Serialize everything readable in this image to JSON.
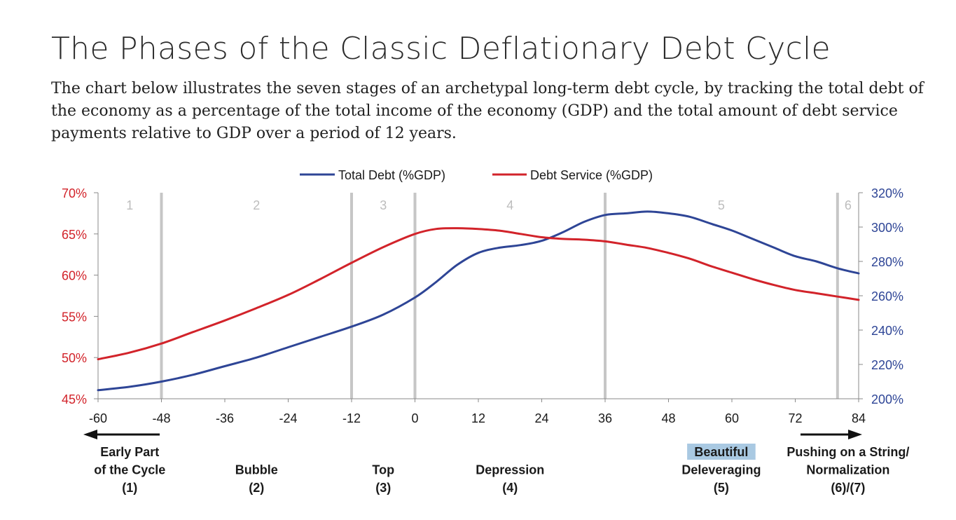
{
  "title": "The Phases of the Classic Deflationary Debt Cycle",
  "subtitle": "The chart below illustrates the seven stages of an archetypal long-term debt cycle, by tracking the total debt of the economy as a percentage of the total income of the economy (GDP) and the total amount of debt service payments relative to GDP over a period of 12 years.",
  "colors": {
    "debt": "#2e4596",
    "service": "#d2232a",
    "divider": "#c6c6c6",
    "phase_num": "#bdbdbd",
    "highlight": "#a9c9e2"
  },
  "chart_data": {
    "type": "line",
    "x_ticks": [
      "-60",
      "-48",
      "-36",
      "-24",
      "-12",
      "0",
      "12",
      "24",
      "36",
      "48",
      "60",
      "72",
      "84"
    ],
    "xlim": [
      -60,
      84
    ],
    "y_left_ticks": [
      "70%",
      "65%",
      "60%",
      "55%",
      "50%",
      "45%"
    ],
    "y_left_lim": [
      45,
      70
    ],
    "y_right_ticks": [
      "320%",
      "300%",
      "280%",
      "260%",
      "240%",
      "220%",
      "200%"
    ],
    "y_right_lim": [
      200,
      320
    ],
    "legend": [
      "Total Debt (%GDP)",
      "Debt Service (%GDP)"
    ],
    "legend_position": "top-center",
    "series": [
      {
        "name": "Total Debt (%GDP)",
        "axis": "right",
        "x": [
          -60,
          -54,
          -48,
          -42,
          -36,
          -30,
          -24,
          -18,
          -12,
          -6,
          0,
          4,
          8,
          12,
          16,
          20,
          24,
          28,
          32,
          36,
          40,
          44,
          48,
          52,
          56,
          60,
          64,
          68,
          72,
          76,
          80,
          84
        ],
        "values": [
          205,
          207,
          210,
          214,
          219,
          224,
          230,
          236,
          242,
          249,
          259,
          268,
          278,
          285,
          288,
          289.5,
          292,
          297,
          303,
          307,
          308,
          309,
          308,
          306,
          302,
          298,
          293,
          288,
          283,
          280,
          276,
          273
        ]
      },
      {
        "name": "Debt Service (%GDP)",
        "axis": "left",
        "x": [
          -60,
          -54,
          -48,
          -42,
          -36,
          -30,
          -24,
          -18,
          -12,
          -6,
          0,
          4,
          8,
          12,
          16,
          20,
          24,
          28,
          32,
          36,
          40,
          44,
          48,
          52,
          56,
          60,
          64,
          68,
          72,
          76,
          80,
          84
        ],
        "values": [
          49.8,
          50.6,
          51.7,
          53.1,
          54.5,
          56.0,
          57.6,
          59.5,
          61.5,
          63.4,
          65.0,
          65.6,
          65.7,
          65.6,
          65.4,
          65.0,
          64.6,
          64.4,
          64.3,
          64.1,
          63.7,
          63.3,
          62.7,
          62.0,
          61.1,
          60.3,
          59.5,
          58.8,
          58.2,
          57.8,
          57.4,
          57.0
        ]
      }
    ],
    "phase_dividers": [
      -48,
      -12,
      0,
      36,
      80
    ],
    "phase_numbers": [
      {
        "label": "1",
        "x": -54
      },
      {
        "label": "2",
        "x": -30
      },
      {
        "label": "3",
        "x": -6
      },
      {
        "label": "4",
        "x": 18
      },
      {
        "label": "5",
        "x": 58
      },
      {
        "label": "6",
        "x": 82
      }
    ],
    "phase_labels": [
      {
        "lines": [
          "Early Part",
          "of the Cycle",
          "(1)"
        ],
        "x": -54
      },
      {
        "lines": [
          "Bubble",
          "(2)"
        ],
        "x": -30
      },
      {
        "lines": [
          "Top",
          "(3)"
        ],
        "x": -6
      },
      {
        "lines": [
          "Depression",
          "(4)"
        ],
        "x": 18
      },
      {
        "lines": [
          "Beautiful",
          "Deleveraging",
          "(5)"
        ],
        "x": 58,
        "highlight_first": true
      },
      {
        "lines": [
          "Pushing on a String/",
          "Normalization",
          "(6)/(7)"
        ],
        "x": 82
      }
    ]
  }
}
